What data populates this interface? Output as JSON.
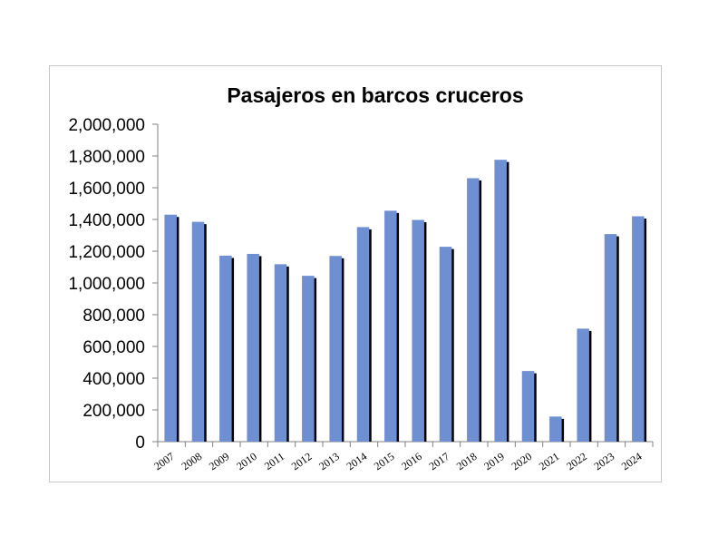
{
  "chart_data": {
    "type": "bar",
    "title": "Pasajeros en barcos cruceros",
    "xlabel": "",
    "ylabel": "",
    "categories": [
      "2007",
      "2008",
      "2009",
      "2010",
      "2011",
      "2012",
      "2013",
      "2014",
      "2015",
      "2016",
      "2017",
      "2018",
      "2019",
      "2020",
      "2021",
      "2022",
      "2023",
      "2024"
    ],
    "values": [
      1430000,
      1385000,
      1172000,
      1183000,
      1118000,
      1045000,
      1170000,
      1352000,
      1455000,
      1397000,
      1228000,
      1660000,
      1776000,
      445000,
      158000,
      712000,
      1308000,
      1420000
    ],
    "ylim": [
      0,
      2000000
    ],
    "yticks": [
      0,
      200000,
      400000,
      600000,
      800000,
      1000000,
      1200000,
      1400000,
      1600000,
      1800000,
      2000000
    ],
    "ytick_labels": [
      "0",
      "200,000",
      "400,000",
      "600,000",
      "800,000",
      "1,000,000",
      "1,200,000",
      "1,400,000",
      "1,600,000",
      "1,800,000",
      "2,000,000"
    ],
    "grid": false,
    "legend": "none",
    "bar_color": "#6f8fd3",
    "bar_shadow_color": "#000000"
  }
}
